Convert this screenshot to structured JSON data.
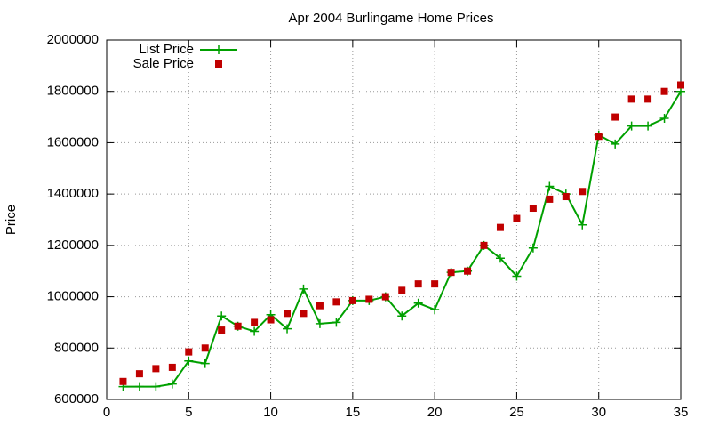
{
  "chart_data": {
    "type": "line",
    "title": "Apr 2004 Burlingame Home Prices",
    "y_label": "Price",
    "x": [
      1,
      2,
      3,
      4,
      5,
      6,
      7,
      8,
      9,
      10,
      11,
      12,
      13,
      14,
      15,
      16,
      17,
      18,
      19,
      20,
      21,
      22,
      23,
      24,
      25,
      26,
      27,
      28,
      29,
      30,
      31,
      32,
      33,
      34,
      35
    ],
    "series": [
      {
        "name": "List Price",
        "color": "#00a000",
        "style": "linespoints",
        "values": [
          650000,
          650000,
          650000,
          660000,
          750000,
          740000,
          925000,
          885000,
          865000,
          930000,
          875000,
          1030000,
          895000,
          900000,
          985000,
          985000,
          1000000,
          925000,
          975000,
          950000,
          1095000,
          1100000,
          1200000,
          1150000,
          1080000,
          1190000,
          1430000,
          1400000,
          1280000,
          1630000,
          1595000,
          1665000,
          1665000,
          1695000,
          1800000
        ]
      },
      {
        "name": "Sale Price",
        "color": "#c00000",
        "style": "points",
        "values": [
          670000,
          700000,
          720000,
          725000,
          785000,
          800000,
          870000,
          885000,
          900000,
          910000,
          935000,
          935000,
          965000,
          980000,
          985000,
          990000,
          1000000,
          1025000,
          1050000,
          1050000,
          1095000,
          1100000,
          1200000,
          1270000,
          1305000,
          1345000,
          1380000,
          1390000,
          1410000,
          1625000,
          1700000,
          1770000,
          1770000,
          1800000,
          1825000
        ]
      }
    ],
    "xlim": [
      0,
      35
    ],
    "xticks": [
      0,
      5,
      10,
      15,
      20,
      25,
      30,
      35
    ],
    "ylim": [
      600000,
      2000000
    ],
    "yticks": [
      600000,
      800000,
      1000000,
      1200000,
      1400000,
      1600000,
      1800000,
      2000000
    ],
    "grid": true,
    "legend": "top-left"
  }
}
